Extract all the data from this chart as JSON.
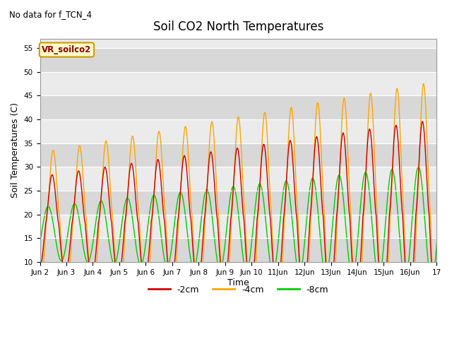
{
  "title": "Soil CO2 North Temperatures",
  "subtitle": "No data for f_TCN_4",
  "ylabel": "Soil Temperatures (C)",
  "xlabel": "Time",
  "legend_label": "VR_soilco2",
  "ylim": [
    10,
    57
  ],
  "yticks": [
    10,
    15,
    20,
    25,
    30,
    35,
    40,
    45,
    50,
    55
  ],
  "line_colors": {
    "minus2cm": "#cc0000",
    "minus4cm": "#ffa500",
    "minus8cm": "#00cc00"
  },
  "legend_items": [
    "-2cm",
    "-4cm",
    "-8cm"
  ],
  "plot_bg_color": "#ebebeb",
  "band_color": "#d8d8d8",
  "figsize": [
    6.4,
    4.8
  ],
  "dpi": 100
}
